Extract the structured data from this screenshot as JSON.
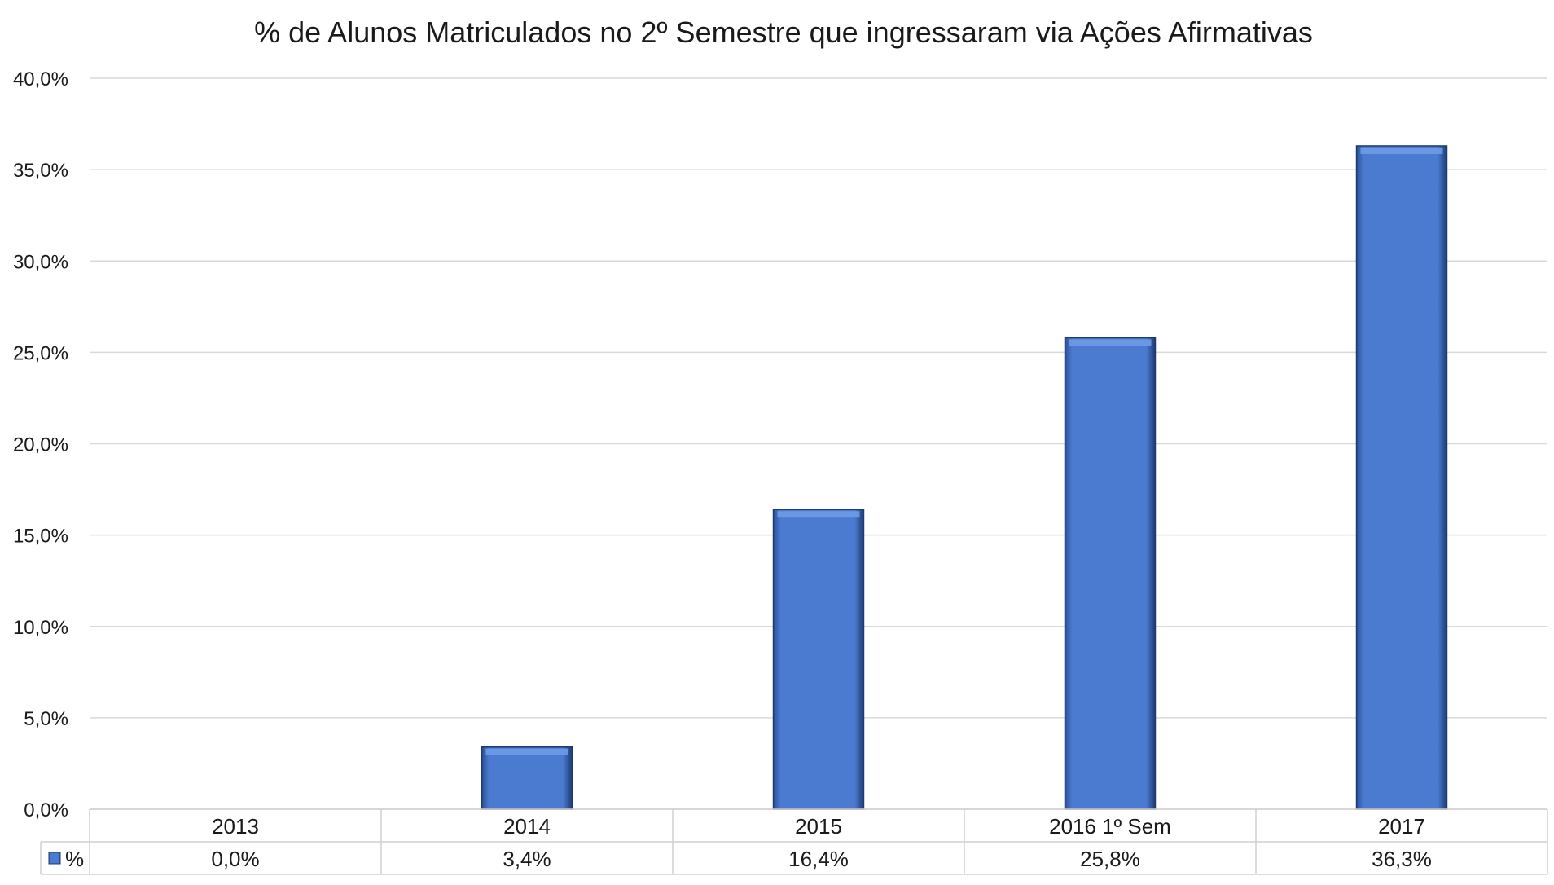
{
  "chart_data": {
    "type": "bar",
    "title": "% de Alunos Matriculados no 2º Semestre que ingressaram via Ações Afirmativas",
    "categories": [
      "2013",
      "2014",
      "2015",
      "2016 1º Sem",
      "2017"
    ],
    "series": [
      {
        "name": "%",
        "values": [
          0.0,
          3.4,
          16.4,
          25.8,
          36.3
        ],
        "labels": [
          "0,0%",
          "3,4%",
          "16,4%",
          "25,8%",
          "36,3%"
        ],
        "color": "#4a7bd0"
      }
    ],
    "ylim": [
      0,
      40
    ],
    "yticks": [
      0,
      5,
      10,
      15,
      20,
      25,
      30,
      35,
      40
    ],
    "ytick_labels": [
      "0,0%",
      "5,0%",
      "10,0%",
      "15,0%",
      "20,0%",
      "25,0%",
      "30,0%",
      "35,0%",
      "40,0%"
    ],
    "grid": true,
    "legend": "data-table-left",
    "data_table": true
  }
}
